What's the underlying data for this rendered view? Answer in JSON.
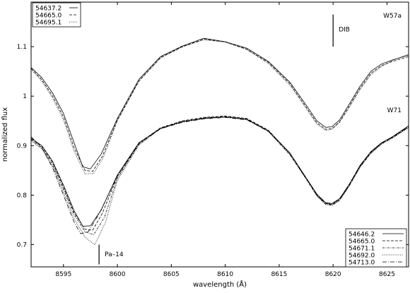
{
  "chart_data": {
    "type": "line",
    "title": "",
    "xlabel": "wavelength (Å)",
    "ylabel": "normalized flux",
    "xlim": [
      8592,
      8627
    ],
    "ylim": [
      0.655,
      1.19
    ],
    "x_ticks": [
      8595,
      8600,
      8605,
      8610,
      8615,
      8620,
      8625
    ],
    "y_ticks": [
      0.7,
      0.8,
      0.9,
      1.0,
      1.1
    ],
    "x_tick_labels": [
      "8595",
      "8600",
      "8605",
      "8610",
      "8615",
      "8620",
      "8625"
    ],
    "y_tick_labels": [
      "0.7",
      "0.8",
      "0.9",
      "1",
      "1.1"
    ],
    "grid": false,
    "annotations": [
      {
        "text": "DIB",
        "x": 8620,
        "y": 1.135
      },
      {
        "text": "Pa–14",
        "x": 8598.3,
        "y": 0.681
      },
      {
        "text": "W57a",
        "x": 8624.5,
        "y": 1.163
      },
      {
        "text": "W71",
        "x": 8624.5,
        "y": 0.972
      }
    ],
    "groups": [
      {
        "label": "W57a",
        "legend_position": "top-left",
        "series": [
          {
            "name": "54637.2",
            "dash": "solid",
            "x": [
              8592,
              8593,
              8594,
              8595,
              8596,
              8596.8,
              8597.5,
              8598.5,
              8600,
              8602,
              8604,
              8606,
              8608,
              8610,
              8612,
              8614,
              8616,
              8617.5,
              8618.5,
              8619.3,
              8619.9,
              8620.6,
              8621.5,
              8622.5,
              8623.5,
              8624.5,
              8625.5,
              8627
            ],
            "y": [
              1.058,
              1.037,
              1.006,
              0.965,
              0.905,
              0.857,
              0.853,
              0.883,
              0.955,
              1.034,
              1.08,
              1.101,
              1.117,
              1.11,
              1.097,
              1.07,
              1.028,
              0.982,
              0.95,
              0.937,
              0.938,
              0.952,
              0.984,
              1.02,
              1.05,
              1.065,
              1.073,
              1.083
            ]
          },
          {
            "name": "54665.0",
            "dash": "dashed",
            "x": [
              8592,
              8593,
              8594,
              8595,
              8596,
              8597,
              8597.7,
              8598.6,
              8600,
              8602,
              8604,
              8606,
              8608,
              8610,
              8612,
              8614,
              8616,
              8617.5,
              8618.5,
              8619.3,
              8619.9,
              8620.6,
              8621.5,
              8622.5,
              8623.5,
              8624.5,
              8625.5,
              8627
            ],
            "y": [
              1.056,
              1.033,
              1.0,
              0.958,
              0.895,
              0.85,
              0.848,
              0.878,
              0.952,
              1.031,
              1.078,
              1.1,
              1.115,
              1.11,
              1.095,
              1.068,
              1.025,
              0.978,
              0.946,
              0.933,
              0.934,
              0.948,
              0.98,
              1.016,
              1.046,
              1.062,
              1.07,
              1.08
            ]
          },
          {
            "name": "54695.1",
            "dash": "dotted",
            "x": [
              8592,
              8593,
              8594,
              8595,
              8596,
              8597,
              8597.8,
              8598.7,
              8600,
              8602,
              8604,
              8606,
              8608,
              8610,
              8612,
              8614,
              8616,
              8617.5,
              8618.5,
              8619.3,
              8619.9,
              8620.6,
              8621.5,
              8622.5,
              8623.5,
              8624.5,
              8625.5,
              8627
            ],
            "y": [
              1.054,
              1.03,
              0.996,
              0.952,
              0.888,
              0.843,
              0.844,
              0.876,
              0.95,
              1.03,
              1.077,
              1.099,
              1.114,
              1.109,
              1.094,
              1.066,
              1.022,
              0.975,
              0.943,
              0.931,
              0.933,
              0.947,
              0.977,
              1.013,
              1.043,
              1.06,
              1.072,
              1.085
            ]
          }
        ]
      },
      {
        "label": "W71",
        "legend_position": "bottom-right",
        "series": [
          {
            "name": "54646.2",
            "dash": "solid",
            "x": [
              8592,
              8593,
              8594,
              8595,
              8596,
              8596.8,
              8597.5,
              8598.5,
              8600,
              8602,
              8604,
              8606,
              8608,
              8610,
              8612,
              8614,
              8616,
              8617.5,
              8618.5,
              8619.3,
              8619.9,
              8620.6,
              8621.5,
              8622.5,
              8623.5,
              8624.5,
              8625.5,
              8627
            ],
            "y": [
              0.915,
              0.9,
              0.868,
              0.82,
              0.768,
              0.737,
              0.738,
              0.77,
              0.841,
              0.906,
              0.935,
              0.948,
              0.955,
              0.958,
              0.953,
              0.93,
              0.885,
              0.835,
              0.802,
              0.785,
              0.783,
              0.793,
              0.822,
              0.86,
              0.888,
              0.906,
              0.918,
              0.94
            ]
          },
          {
            "name": "54665.0",
            "dash": "dashed",
            "x": [
              8592,
              8593,
              8594,
              8595,
              8596,
              8597,
              8597.7,
              8598.6,
              8600,
              8602,
              8604,
              8606,
              8608,
              8610,
              8612,
              8614,
              8616,
              8617.5,
              8618.5,
              8619.3,
              8619.9,
              8620.6,
              8621.5,
              8622.5,
              8623.5,
              8624.5,
              8625.5,
              8627
            ],
            "y": [
              0.914,
              0.898,
              0.866,
              0.816,
              0.764,
              0.731,
              0.729,
              0.763,
              0.838,
              0.905,
              0.936,
              0.95,
              0.957,
              0.96,
              0.955,
              0.931,
              0.884,
              0.834,
              0.8,
              0.783,
              0.781,
              0.791,
              0.82,
              0.858,
              0.886,
              0.905,
              0.917,
              0.938
            ]
          },
          {
            "name": "54671.1",
            "dash": "dashdotted-dense",
            "x": [
              8592,
              8593,
              8594,
              8595,
              8596,
              8597,
              8597.8,
              8598.8,
              8600,
              8602,
              8604,
              8606,
              8608,
              8610,
              8612,
              8614,
              8616,
              8617.5,
              8618.5,
              8619.3,
              8619.9,
              8620.6,
              8621.5,
              8622.5,
              8623.5,
              8624.5,
              8625.5,
              8627
            ],
            "y": [
              0.912,
              0.895,
              0.862,
              0.812,
              0.76,
              0.726,
              0.72,
              0.755,
              0.834,
              0.903,
              0.935,
              0.949,
              0.956,
              0.959,
              0.954,
              0.929,
              0.882,
              0.833,
              0.799,
              0.782,
              0.78,
              0.79,
              0.819,
              0.857,
              0.885,
              0.904,
              0.916,
              0.937
            ]
          },
          {
            "name": "54692.0",
            "dash": "dotted",
            "x": [
              8592,
              8593,
              8594,
              8595,
              8596,
              8597,
              8597.9,
              8598.9,
              8600,
              8602,
              8604,
              8606,
              8608,
              8610,
              8612,
              8614,
              8616,
              8617.5,
              8618.5,
              8619.3,
              8619.9,
              8620.6,
              8621.5,
              8622.5,
              8623.5,
              8624.5,
              8625.5,
              8627
            ],
            "y": [
              0.91,
              0.893,
              0.858,
              0.806,
              0.752,
              0.715,
              0.7,
              0.745,
              0.83,
              0.901,
              0.934,
              0.948,
              0.955,
              0.958,
              0.953,
              0.928,
              0.881,
              0.832,
              0.798,
              0.781,
              0.779,
              0.789,
              0.818,
              0.856,
              0.884,
              0.903,
              0.915,
              0.936
            ]
          },
          {
            "name": "54713.0",
            "dash": "dashdot",
            "x": [
              8592,
              8593,
              8594,
              8595,
              8596,
              8596.6,
              8597.3,
              8598.3,
              8600,
              8602,
              8604,
              8606,
              8608,
              8610,
              8612,
              8614,
              8616,
              8617.5,
              8618.5,
              8619.3,
              8619.9,
              8620.6,
              8621.5,
              8622.5,
              8623.5,
              8624.5,
              8625.5,
              8627
            ],
            "y": [
              0.918,
              0.896,
              0.855,
              0.8,
              0.745,
              0.722,
              0.726,
              0.762,
              0.838,
              0.904,
              0.934,
              0.947,
              0.954,
              0.957,
              0.952,
              0.929,
              0.884,
              0.834,
              0.801,
              0.784,
              0.782,
              0.792,
              0.821,
              0.859,
              0.887,
              0.905,
              0.917,
              0.939
            ]
          }
        ]
      }
    ]
  }
}
